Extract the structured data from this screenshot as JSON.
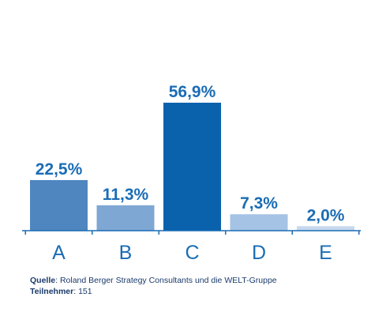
{
  "chart_data": {
    "type": "bar",
    "categories": [
      "A",
      "B",
      "C",
      "D",
      "E"
    ],
    "values": [
      22.5,
      11.3,
      56.9,
      7.3,
      2.0
    ],
    "value_labels": [
      "22,5%",
      "11,3%",
      "56,9%",
      "7,3%",
      "2,0%"
    ],
    "colors": [
      "#4f86c0",
      "#7ea7d4",
      "#0a62ad",
      "#a5c3e5",
      "#c6d9ee"
    ],
    "label_color": "#1a6cb5",
    "axis_color": "#1a6cb5",
    "ylim": [
      0,
      56.9
    ],
    "title": "",
    "xlabel": "",
    "ylabel": ""
  },
  "footer": {
    "source_label": "Quelle",
    "source_text": ": Roland Berger Strategy Consultants und die WELT-Gruppe",
    "participants_label": "Teilnehmer",
    "participants_text": ": 151"
  }
}
